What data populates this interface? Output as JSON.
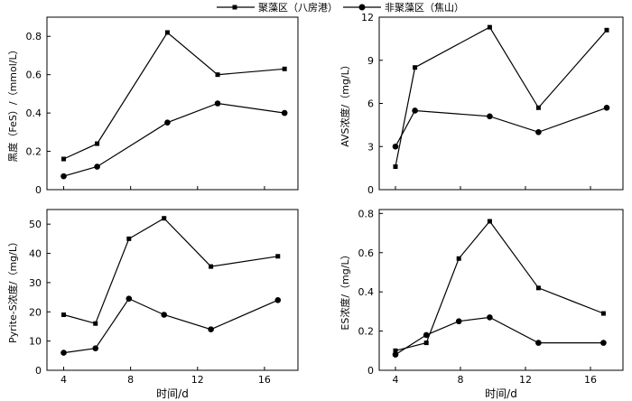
{
  "legend": {
    "placement": "top-center",
    "entries": [
      {
        "label": "聚藻区（八房港）",
        "marker": "square"
      },
      {
        "label": "非聚藻区（焦山）",
        "marker": "circle"
      }
    ]
  },
  "chart_data": [
    {
      "type": "line",
      "ylabel": "黑度（FeS）/（mmol/L）",
      "xlabel": "",
      "xlim": [
        3,
        18
      ],
      "ylim": [
        0,
        0.9
      ],
      "yticks": [
        0,
        0.2,
        0.4,
        0.6,
        0.8
      ],
      "ytick_labels": [
        "0",
        "0.2",
        "0.4",
        "0.6",
        "0.8"
      ],
      "xticks": [
        4,
        8,
        12,
        16
      ],
      "xtick_labels": [],
      "grid": false,
      "series": [
        {
          "name": "聚藻区（八房港）",
          "marker": "square",
          "x": [
            4,
            6,
            10.2,
            13.2,
            17.2
          ],
          "y": [
            0.16,
            0.24,
            0.82,
            0.6,
            0.63
          ]
        },
        {
          "name": "非聚藻区（焦山）",
          "marker": "circle",
          "x": [
            4,
            6,
            10.2,
            13.2,
            17.2
          ],
          "y": [
            0.07,
            0.12,
            0.35,
            0.45,
            0.4
          ]
        }
      ]
    },
    {
      "type": "line",
      "ylabel": "AVS浓度/（mg/L）",
      "xlabel": "",
      "xlim": [
        3,
        18
      ],
      "ylim": [
        0,
        12
      ],
      "yticks": [
        0,
        3,
        6,
        9,
        12
      ],
      "ytick_labels": [
        "0",
        "3",
        "6",
        "9",
        "12"
      ],
      "xticks": [
        4,
        8,
        12,
        16
      ],
      "xtick_labels": [],
      "grid": false,
      "series": [
        {
          "name": "聚藻区（八房港）",
          "marker": "square",
          "x": [
            4,
            5.2,
            9.8,
            12.8,
            17
          ],
          "y": [
            1.6,
            8.5,
            11.3,
            5.7,
            11.1
          ]
        },
        {
          "name": "非聚藻区（焦山）",
          "marker": "circle",
          "x": [
            4,
            5.2,
            9.8,
            12.8,
            17
          ],
          "y": [
            3.0,
            5.5,
            5.1,
            4.0,
            5.7
          ]
        }
      ]
    },
    {
      "type": "line",
      "ylabel": "Pyrite-S浓度/（mg/L）",
      "xlabel": "时间/d",
      "xlim": [
        3,
        18
      ],
      "ylim": [
        0,
        55
      ],
      "yticks": [
        0,
        10,
        20,
        30,
        40,
        50
      ],
      "ytick_labels": [
        "0",
        "10",
        "20",
        "30",
        "40",
        "50"
      ],
      "xticks": [
        4,
        8,
        12,
        16
      ],
      "xtick_labels": [
        "4",
        "8",
        "12",
        "16"
      ],
      "grid": false,
      "series": [
        {
          "name": "聚藻区（八房港）",
          "marker": "square",
          "x": [
            4,
            5.9,
            7.9,
            10,
            12.8,
            16.8
          ],
          "y": [
            19,
            16,
            45,
            52,
            35.5,
            39
          ]
        },
        {
          "name": "非聚藻区（焦山）",
          "marker": "circle",
          "x": [
            4,
            5.9,
            7.9,
            10,
            12.8,
            16.8
          ],
          "y": [
            6,
            7.5,
            24.5,
            19,
            14,
            24
          ]
        }
      ]
    },
    {
      "type": "line",
      "ylabel": "ES浓度/（mg/L）",
      "xlabel": "时间/d",
      "xlim": [
        3,
        18
      ],
      "ylim": [
        0,
        0.82
      ],
      "yticks": [
        0,
        0.2,
        0.4,
        0.6,
        0.8
      ],
      "ytick_labels": [
        "0",
        "0.2",
        "0.4",
        "0.6",
        "0.8"
      ],
      "xticks": [
        4,
        8,
        12,
        16
      ],
      "xtick_labels": [
        "4",
        "8",
        "12",
        "16"
      ],
      "grid": false,
      "series": [
        {
          "name": "聚藻区（八房港）",
          "marker": "square",
          "x": [
            4,
            5.9,
            7.9,
            9.8,
            12.8,
            16.8
          ],
          "y": [
            0.1,
            0.14,
            0.57,
            0.76,
            0.42,
            0.29
          ]
        },
        {
          "name": "非聚藻区（焦山）",
          "marker": "circle",
          "x": [
            4,
            5.9,
            7.9,
            9.8,
            12.8,
            16.8
          ],
          "y": [
            0.08,
            0.18,
            0.25,
            0.27,
            0.14,
            0.14
          ]
        }
      ]
    }
  ]
}
